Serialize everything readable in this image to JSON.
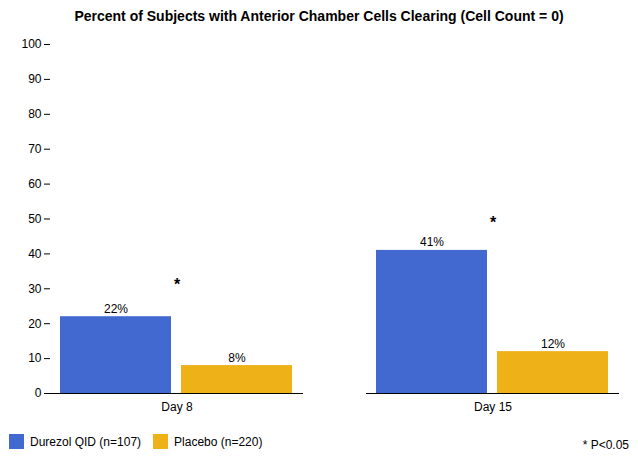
{
  "chart_data": {
    "type": "bar",
    "title": "Percent of Subjects with Anterior Chamber Cells Clearing (Cell Count = 0)",
    "categories": [
      "Day 8",
      "Day 15"
    ],
    "series": [
      {
        "name": "Durezol QID (n=107)",
        "values": [
          22,
          41
        ],
        "value_labels": [
          "22%",
          "41%"
        ]
      },
      {
        "name": "Placebo (n=220)",
        "values": [
          8,
          12
        ],
        "value_labels": [
          "8%",
          "12%"
        ]
      }
    ],
    "ylim": [
      0,
      100
    ],
    "yticks": [
      0,
      10,
      20,
      30,
      40,
      50,
      60,
      70,
      80,
      90,
      100
    ],
    "grid": false,
    "legend": "lower left",
    "data_labels": true,
    "annotations": [
      {
        "text": "*",
        "category": "Day 8",
        "y": 31
      },
      {
        "text": "*",
        "category": "Day 15",
        "y": 49
      },
      {
        "text": "* P<0.05"
      }
    ]
  }
}
